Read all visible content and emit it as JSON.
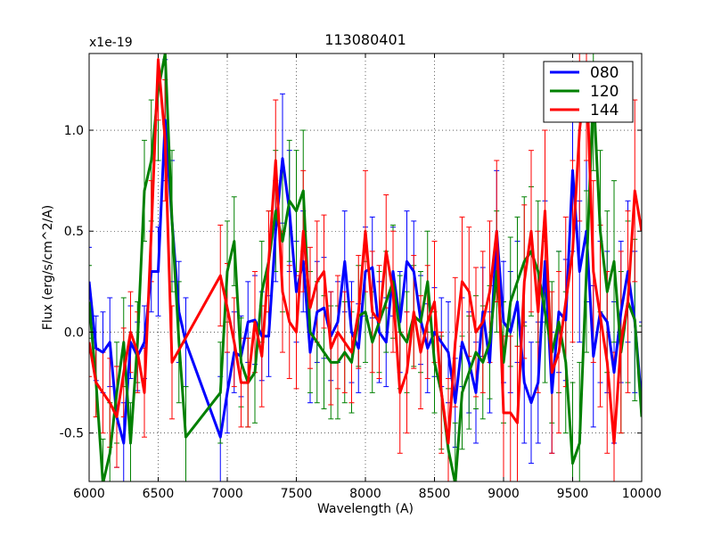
{
  "chart_data": {
    "type": "line",
    "title": "113080401",
    "xlabel": "Wavelength (A)",
    "ylabel": "Flux (erg/s/cm^2/A)",
    "y_scale_label": "x1e-19",
    "xlim": [
      6000,
      10000
    ],
    "ylim": [
      -0.74,
      1.38
    ],
    "grid": true,
    "legend_position": "top-right",
    "x_ticks": [
      6000,
      6500,
      7000,
      7500,
      8000,
      8500,
      9000,
      9500,
      10000
    ],
    "x_tick_labels": [
      "6000",
      "6500",
      "7000",
      "7500",
      "8000",
      "8500",
      "9000",
      "9500",
      "10000"
    ],
    "y_ticks": [
      -0.5,
      0.0,
      0.5,
      1.0
    ],
    "y_tick_labels": [
      "-0.5",
      "0.0",
      "0.5",
      "1.0"
    ],
    "series": [
      {
        "name": "080",
        "color": "#0000ff",
        "x": [
          6000,
          6050,
          6100,
          6150,
          6200,
          6250,
          6300,
          6350,
          6400,
          6450,
          6500,
          6550,
          6600,
          6650,
          6700,
          6950,
          7000,
          7050,
          7100,
          7150,
          7200,
          7250,
          7300,
          7350,
          7400,
          7450,
          7500,
          7550,
          7600,
          7650,
          7700,
          7750,
          7800,
          7850,
          7900,
          7950,
          8000,
          8050,
          8100,
          8150,
          8200,
          8250,
          8300,
          8350,
          8400,
          8450,
          8500,
          8550,
          8600,
          8650,
          8700,
          8750,
          8800,
          8850,
          8900,
          8950,
          9000,
          9050,
          9100,
          9150,
          9200,
          9250,
          9300,
          9350,
          9400,
          9450,
          9500,
          9550,
          9600,
          9650,
          9700,
          9750,
          9800,
          9850,
          9900,
          9950,
          10000
        ],
        "values": [
          0.25,
          -0.08,
          -0.1,
          -0.05,
          -0.42,
          -0.55,
          -0.05,
          -0.12,
          -0.05,
          0.3,
          0.3,
          1.05,
          0.55,
          0.1,
          -0.05,
          -0.52,
          -0.3,
          -0.1,
          -0.12,
          0.05,
          0.06,
          -0.02,
          -0.02,
          0.5,
          0.86,
          0.6,
          0.2,
          0.35,
          -0.1,
          0.1,
          0.12,
          -0.02,
          0.05,
          0.35,
          0.0,
          -0.08,
          0.3,
          0.32,
          0.0,
          -0.05,
          0.3,
          0.05,
          0.35,
          0.3,
          0.06,
          -0.08,
          0.0,
          -0.05,
          -0.1,
          -0.35,
          -0.05,
          -0.15,
          -0.3,
          0.1,
          -0.15,
          0.5,
          0.05,
          0.0,
          0.15,
          -0.25,
          -0.35,
          -0.25,
          0.35,
          -0.3,
          0.1,
          0.06,
          0.8,
          0.3,
          0.5,
          -0.12,
          0.1,
          0.05,
          -0.2,
          0.1,
          0.3,
          0.05,
          -0.35
        ],
        "errors": [
          0.17,
          0.16,
          0.2,
          0.22,
          0.25,
          0.2,
          0.18,
          0.17,
          0.18,
          0.2,
          0.22,
          0.3,
          0.3,
          0.25,
          0.22,
          0.3,
          0.2,
          0.2,
          0.2,
          0.2,
          0.22,
          0.22,
          0.2,
          0.25,
          0.32,
          0.3,
          0.25,
          0.25,
          0.25,
          0.25,
          0.25,
          0.22,
          0.2,
          0.25,
          0.25,
          0.22,
          0.22,
          0.25,
          0.25,
          0.22,
          0.22,
          0.25,
          0.25,
          0.25,
          0.22,
          0.22,
          0.22,
          0.22,
          0.25,
          0.22,
          0.22,
          0.25,
          0.25,
          0.22,
          0.25,
          0.3,
          0.3,
          0.3,
          0.3,
          0.3,
          0.3,
          0.3,
          0.3,
          0.3,
          0.3,
          0.3,
          0.4,
          0.35,
          0.35,
          0.35,
          0.35,
          0.35,
          0.35,
          0.35,
          0.35,
          0.35,
          0.4
        ]
      },
      {
        "name": "120",
        "color": "#008000",
        "x": [
          6000,
          6050,
          6100,
          6150,
          6200,
          6250,
          6300,
          6350,
          6400,
          6450,
          6500,
          6550,
          6600,
          6650,
          6700,
          6950,
          7000,
          7050,
          7100,
          7150,
          7200,
          7250,
          7300,
          7350,
          7400,
          7450,
          7500,
          7550,
          7600,
          7650,
          7700,
          7750,
          7800,
          7850,
          7900,
          7950,
          8000,
          8050,
          8100,
          8150,
          8200,
          8250,
          8300,
          8350,
          8400,
          8450,
          8500,
          8550,
          8600,
          8650,
          8700,
          8750,
          8800,
          8850,
          8900,
          8950,
          9000,
          9050,
          9100,
          9150,
          9200,
          9250,
          9300,
          9350,
          9400,
          9450,
          9500,
          9550,
          9600,
          9650,
          9700,
          9750,
          9800,
          9850,
          9900,
          9950,
          10000
        ],
        "values": [
          0.15,
          -0.25,
          -0.75,
          -0.6,
          -0.3,
          -0.05,
          -0.55,
          -0.05,
          0.7,
          0.85,
          1.2,
          1.38,
          0.55,
          -0.05,
          -0.52,
          -0.3,
          0.3,
          0.45,
          -0.15,
          -0.25,
          -0.2,
          0.2,
          0.35,
          0.6,
          0.45,
          0.65,
          0.6,
          0.7,
          0.0,
          -0.05,
          -0.1,
          -0.15,
          -0.15,
          -0.1,
          -0.15,
          0.08,
          0.1,
          -0.05,
          0.05,
          0.15,
          0.25,
          0.0,
          -0.05,
          0.08,
          0.05,
          0.25,
          -0.15,
          -0.3,
          -0.58,
          -0.75,
          -0.3,
          -0.2,
          -0.1,
          -0.15,
          -0.05,
          0.3,
          -0.15,
          0.15,
          0.25,
          0.35,
          0.4,
          0.3,
          0.1,
          -0.1,
          0.05,
          -0.15,
          -0.65,
          -0.55,
          0.3,
          1.2,
          0.5,
          0.2,
          0.35,
          -0.1,
          0.15,
          0.06,
          -0.42
        ],
        "errors": [
          0.18,
          0.17,
          0.22,
          0.25,
          0.25,
          0.22,
          0.2,
          0.2,
          0.25,
          0.3,
          0.35,
          0.35,
          0.35,
          0.3,
          0.25,
          0.25,
          0.25,
          0.22,
          0.22,
          0.22,
          0.25,
          0.25,
          0.25,
          0.3,
          0.35,
          0.3,
          0.3,
          0.3,
          0.3,
          0.3,
          0.28,
          0.28,
          0.28,
          0.25,
          0.25,
          0.25,
          0.25,
          0.25,
          0.25,
          0.25,
          0.28,
          0.28,
          0.25,
          0.25,
          0.25,
          0.25,
          0.25,
          0.28,
          0.3,
          0.3,
          0.28,
          0.28,
          0.28,
          0.28,
          0.28,
          0.3,
          0.3,
          0.32,
          0.32,
          0.32,
          0.32,
          0.35,
          0.35,
          0.35,
          0.35,
          0.35,
          0.4,
          0.4,
          0.4,
          0.4,
          0.4,
          0.4,
          0.4,
          0.4,
          0.4,
          0.4,
          0.45
        ]
      },
      {
        "name": "144",
        "color": "#ff0000",
        "x": [
          6000,
          6050,
          6100,
          6150,
          6200,
          6250,
          6300,
          6350,
          6400,
          6450,
          6500,
          6550,
          6600,
          6950,
          7000,
          7050,
          7100,
          7150,
          7200,
          7250,
          7300,
          7350,
          7400,
          7450,
          7500,
          7550,
          7600,
          7650,
          7700,
          7750,
          7800,
          7850,
          7900,
          7950,
          8000,
          8050,
          8100,
          8150,
          8200,
          8250,
          8300,
          8350,
          8400,
          8450,
          8500,
          8550,
          8600,
          8650,
          8700,
          8750,
          8800,
          8850,
          8900,
          8950,
          9000,
          9050,
          9100,
          9150,
          9200,
          9250,
          9300,
          9350,
          9400,
          9450,
          9500,
          9550,
          9600,
          9650,
          9700,
          9750,
          9800,
          9850,
          9900,
          9950,
          10000
        ],
        "values": [
          -0.05,
          -0.25,
          -0.3,
          -0.35,
          -0.42,
          -0.2,
          0.0,
          -0.1,
          -0.3,
          0.5,
          1.35,
          0.95,
          -0.15,
          0.28,
          0.12,
          -0.05,
          -0.25,
          -0.25,
          0.05,
          -0.12,
          0.35,
          0.85,
          0.2,
          0.05,
          0.0,
          0.5,
          0.12,
          0.25,
          0.3,
          -0.08,
          0.0,
          -0.05,
          -0.1,
          0.1,
          0.5,
          0.1,
          0.05,
          0.4,
          0.2,
          -0.3,
          -0.2,
          0.1,
          -0.1,
          0.05,
          0.15,
          -0.3,
          -0.55,
          -0.05,
          0.25,
          0.2,
          0.0,
          0.05,
          0.2,
          0.5,
          -0.4,
          -0.4,
          -0.45,
          0.25,
          0.5,
          0.1,
          0.6,
          -0.2,
          -0.1,
          0.15,
          0.4,
          1.0,
          1.3,
          0.3,
          0.08,
          -0.15,
          -0.55,
          -0.05,
          0.15,
          0.7,
          0.5
        ],
        "errors": [
          0.17,
          0.17,
          0.2,
          0.22,
          0.25,
          0.22,
          0.2,
          0.2,
          0.22,
          0.25,
          0.3,
          0.3,
          0.28,
          0.25,
          0.22,
          0.22,
          0.22,
          0.22,
          0.25,
          0.25,
          0.25,
          0.3,
          0.3,
          0.28,
          0.28,
          0.3,
          0.3,
          0.3,
          0.28,
          0.28,
          0.28,
          0.25,
          0.25,
          0.28,
          0.3,
          0.3,
          0.28,
          0.28,
          0.3,
          0.3,
          0.3,
          0.28,
          0.28,
          0.28,
          0.3,
          0.3,
          0.32,
          0.32,
          0.32,
          0.32,
          0.32,
          0.35,
          0.35,
          0.35,
          0.38,
          0.38,
          0.38,
          0.38,
          0.4,
          0.4,
          0.4,
          0.4,
          0.4,
          0.42,
          0.45,
          0.45,
          0.45,
          0.45,
          0.45,
          0.45,
          0.45,
          0.45,
          0.45,
          0.45,
          0.5
        ]
      }
    ]
  }
}
